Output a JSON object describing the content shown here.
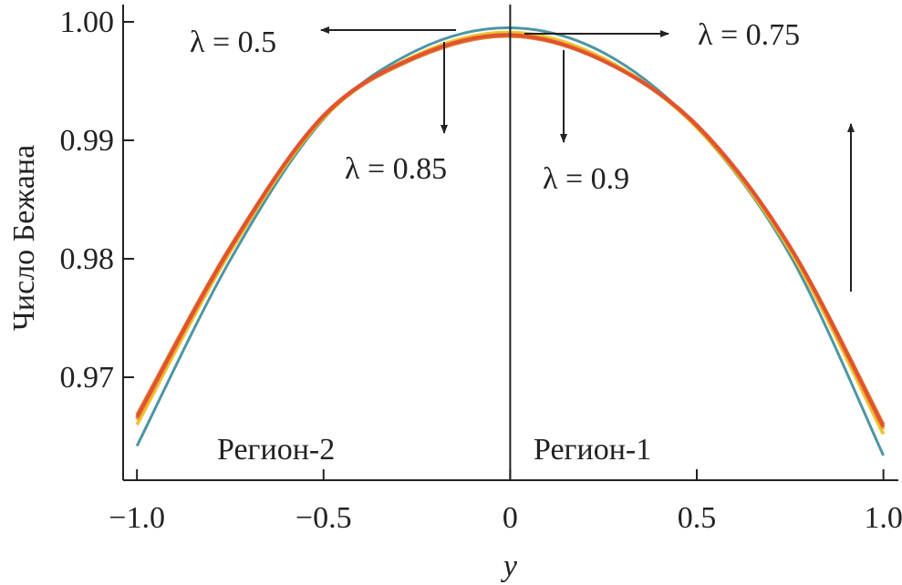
{
  "chart_data": {
    "type": "line",
    "x_label": "y",
    "y_label": "Число Бежана",
    "x": [
      -1.0,
      -0.75,
      -0.5,
      -0.25,
      0,
      0.25,
      0.5,
      0.75,
      1.0
    ],
    "series": [
      {
        "color": "#3a8a9a",
        "values": [
          0.9642,
          0.9799,
          0.9918,
          0.9976,
          0.9995,
          0.9974,
          0.9911,
          0.9803,
          0.9634
        ]
      },
      {
        "color": "#e8c020",
        "values": [
          0.966,
          0.9806,
          0.9919,
          0.9972,
          0.9991,
          0.9969,
          0.9911,
          0.9807,
          0.9652
        ]
      },
      {
        "color": "#f0a030",
        "values": [
          0.9664,
          0.9808,
          0.992,
          0.9971,
          0.9989,
          0.9968,
          0.9912,
          0.9809,
          0.9656
        ]
      },
      {
        "color": "#e07020",
        "values": [
          0.9668,
          0.981,
          0.992,
          0.997,
          0.9988,
          0.9967,
          0.9912,
          0.981,
          0.966
        ]
      },
      {
        "color": "#e05030",
        "values": [
          0.9666,
          0.9809,
          0.9921,
          0.9971,
          0.9989,
          0.9967,
          0.9913,
          0.981,
          0.9658
        ]
      }
    ],
    "annotations": [
      "λ = 0.5",
      "λ = 0.75",
      "λ = 0.85",
      "λ = 0.9",
      "Регион-2",
      "Регион-1"
    ],
    "xlim": [
      -1.037,
      1.04
    ],
    "ylim": [
      0.96131,
      1.00146
    ],
    "xticks": [
      {
        "value": -1.0,
        "label": "−1.0"
      },
      {
        "value": -0.5,
        "label": "−0.5"
      },
      0,
      0.5,
      {
        "value": 1.0,
        "label": "1.0"
      }
    ],
    "yticks": [
      0.97,
      0.98,
      0.99,
      {
        "value": 1.0,
        "label": "1.00"
      }
    ]
  }
}
